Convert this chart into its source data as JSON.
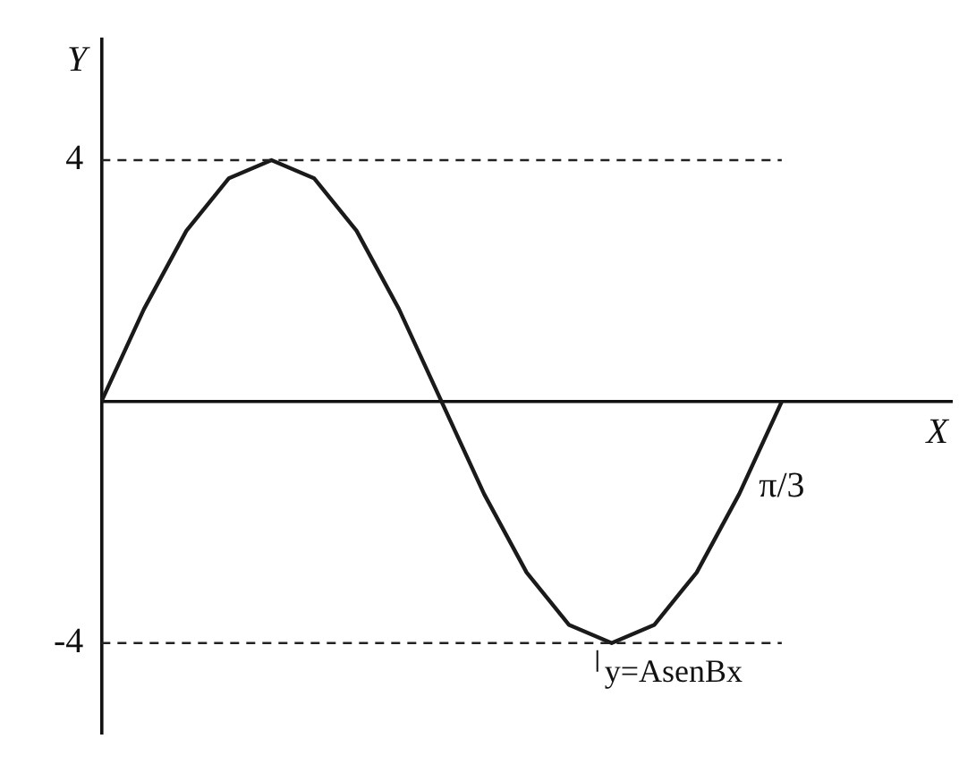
{
  "chart_data": {
    "type": "line",
    "xlabel": "X",
    "ylabel": "Y",
    "categories": [
      null,
      null,
      null,
      null,
      null,
      null,
      null,
      null,
      null,
      null,
      null,
      null,
      null,
      null,
      null,
      null,
      "π/3"
    ],
    "series": [
      {
        "color": "#1a1a1a",
        "values": [
          0,
          1.53,
          2.83,
          3.7,
          4,
          3.7,
          2.83,
          1.53,
          0,
          -1.53,
          -2.83,
          -3.7,
          -4,
          -3.7,
          -2.83,
          -1.53,
          0
        ]
      }
    ],
    "ylim": [
      -5.5,
      6
    ],
    "yticks": [
      4,
      -4
    ],
    "ref_lines": [
      {
        "axis": "y",
        "value": 4,
        "line_style": "dashed"
      },
      {
        "axis": "y",
        "value": -4,
        "line_style": "dashed"
      }
    ],
    "annotations": [
      {
        "text": "y=AsenBx",
        "y": -4
      }
    ],
    "grid": false,
    "legend": false,
    "marker": "none",
    "line_style": "solid"
  }
}
